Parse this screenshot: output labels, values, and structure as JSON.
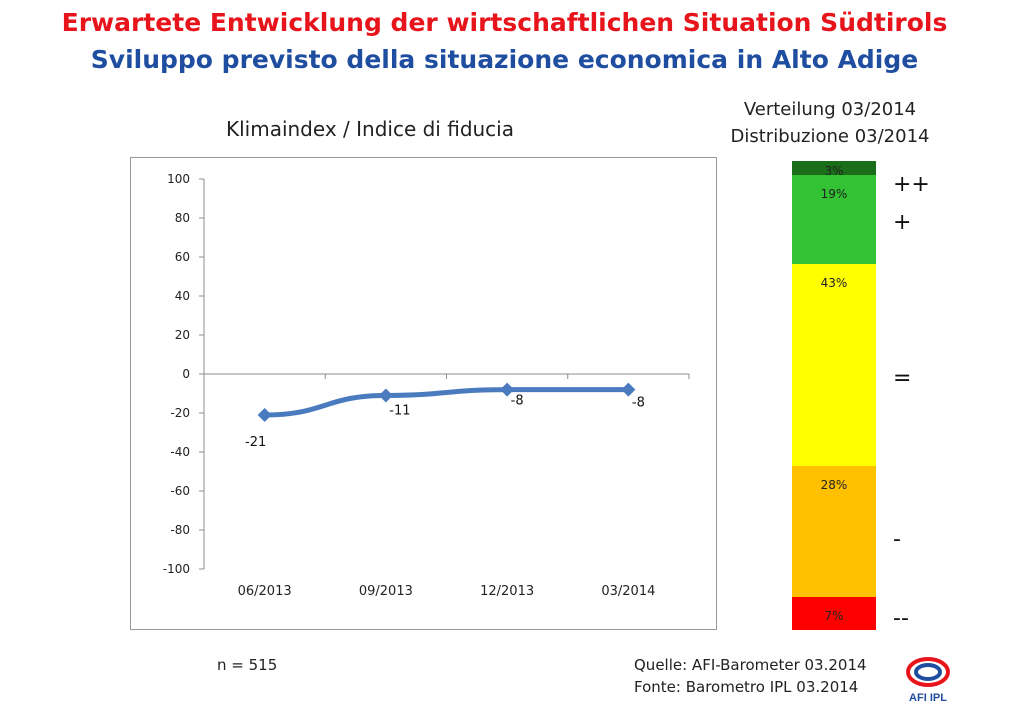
{
  "header": {
    "title_de": "Erwartete Entwicklung der wirtschaftlichen Situation Südtirols",
    "title_it": "Sviluppo previsto della situazione economica in Alto Adige"
  },
  "chart_data": [
    {
      "type": "line",
      "title": "Klimaindex / Indice di fiducia",
      "categories": [
        "06/2013",
        "09/2013",
        "12/2013",
        "03/2014"
      ],
      "series": [
        {
          "values": [
            -21,
            -11,
            -8,
            -8
          ],
          "color": "#4a7bbf"
        }
      ],
      "data_labels": [
        "-21",
        "-11",
        "-8",
        "-8"
      ],
      "yticks": [
        "100",
        "80",
        "60",
        "40",
        "20",
        "0",
        "-20",
        "-40",
        "-60",
        "-80",
        "-100"
      ],
      "ylim": [
        -100,
        100
      ],
      "grid": false,
      "xlabel": "",
      "ylabel": ""
    },
    {
      "type": "bar",
      "stacked": true,
      "title_de": "Verteilung 03/2014",
      "title_it": "Distribuzione 03/2014",
      "categories": [
        "++",
        "+",
        "=",
        "-",
        "--"
      ],
      "values": [
        3,
        19,
        43,
        28,
        7
      ],
      "labels": [
        "3%",
        "19%",
        "43%",
        "28%",
        "7%"
      ],
      "colors": [
        "#1a6e1a",
        "#33c233",
        "#ffff00",
        "#ffc000",
        "#ff0000"
      ]
    }
  ],
  "footer": {
    "sample": "n = 515",
    "source_de": "Quelle: AFI-Barometer 03.2014",
    "source_it": "Fonte: Barometro IPL 03.2014",
    "logo_text": "AFI IPL"
  }
}
